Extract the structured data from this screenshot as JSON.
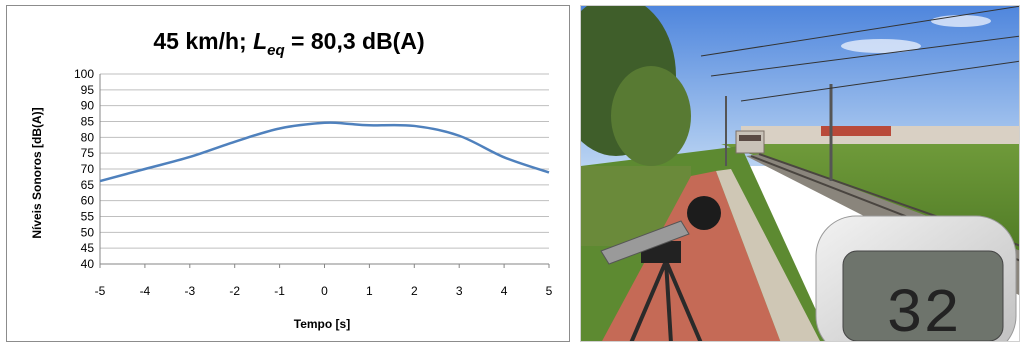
{
  "chart_data": {
    "type": "line",
    "title": "45 km/h; L_eq = 80,3 dB(A)",
    "title_parts": {
      "prefix": "45 km/h; ",
      "symbol": "L",
      "subscript": "eq",
      "suffix": " = 80,3 dB(A)"
    },
    "xlabel": "Tempo [s]",
    "ylabel": "Níveis Sonoros [dB(A)]",
    "xlim": [
      -5,
      5
    ],
    "ylim": [
      40,
      100
    ],
    "xticks": [
      "-5",
      "-4",
      "-3",
      "-2",
      "-1",
      "0",
      "1",
      "2",
      "3",
      "4",
      "5"
    ],
    "yticks": [
      "100",
      "95",
      "90",
      "85",
      "80",
      "75",
      "70",
      "65",
      "60",
      "55",
      "50",
      "45",
      "40"
    ],
    "grid": "horizontal",
    "series": [
      {
        "color": "#4f81bd",
        "x": [
          -5,
          -4,
          -3,
          -2,
          -1,
          0,
          0.5,
          1,
          2,
          3,
          4,
          5
        ],
        "y": [
          66.2,
          70.0,
          73.8,
          78.6,
          82.8,
          84.6,
          84.3,
          83.8,
          83.6,
          80.5,
          73.7,
          68.9
        ]
      }
    ]
  },
  "photo": {
    "description_icon": "photo-sound-level-measurement",
    "meter_display": "32"
  }
}
